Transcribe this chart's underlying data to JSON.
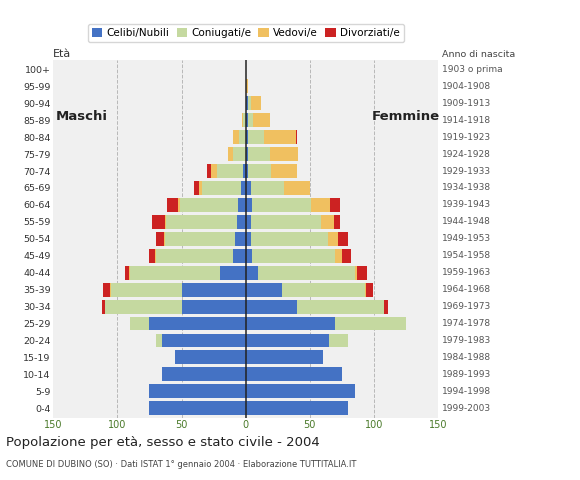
{
  "age_groups_bottom_to_top": [
    "0-4",
    "5-9",
    "10-14",
    "15-19",
    "20-24",
    "25-29",
    "30-34",
    "35-39",
    "40-44",
    "45-49",
    "50-54",
    "55-59",
    "60-64",
    "65-69",
    "70-74",
    "75-79",
    "80-84",
    "85-89",
    "90-94",
    "95-99",
    "100+"
  ],
  "birth_years_bottom_to_top": [
    "1999-2003",
    "1994-1998",
    "1989-1993",
    "1984-1988",
    "1979-1983",
    "1974-1978",
    "1969-1973",
    "1964-1968",
    "1959-1963",
    "1954-1958",
    "1949-1953",
    "1944-1948",
    "1939-1943",
    "1934-1938",
    "1929-1933",
    "1924-1928",
    "1919-1923",
    "1914-1918",
    "1909-1913",
    "1904-1908",
    "1903 o prima"
  ],
  "male_celibi": [
    75,
    75,
    65,
    55,
    65,
    75,
    50,
    50,
    20,
    10,
    8,
    7,
    6,
    4,
    2,
    0,
    0,
    0,
    0,
    0,
    0
  ],
  "male_coniugati": [
    0,
    0,
    0,
    0,
    5,
    15,
    60,
    55,
    70,
    60,
    55,
    55,
    45,
    30,
    20,
    10,
    5,
    2,
    0,
    0,
    0
  ],
  "male_vedovi": [
    0,
    0,
    0,
    0,
    0,
    0,
    0,
    1,
    1,
    1,
    1,
    1,
    2,
    2,
    5,
    4,
    5,
    1,
    0,
    0,
    0
  ],
  "male_divorziati": [
    0,
    0,
    0,
    0,
    0,
    0,
    2,
    5,
    3,
    4,
    6,
    10,
    8,
    4,
    3,
    0,
    0,
    0,
    0,
    0,
    0
  ],
  "female_nubili": [
    80,
    85,
    75,
    60,
    65,
    70,
    40,
    28,
    10,
    5,
    4,
    4,
    5,
    4,
    2,
    2,
    2,
    2,
    2,
    0,
    0
  ],
  "female_coniugate": [
    0,
    0,
    0,
    0,
    15,
    55,
    68,
    65,
    75,
    65,
    60,
    55,
    46,
    26,
    18,
    17,
    12,
    4,
    2,
    0,
    0
  ],
  "female_vedove": [
    0,
    0,
    0,
    0,
    0,
    0,
    0,
    1,
    2,
    5,
    8,
    10,
    15,
    20,
    20,
    22,
    25,
    13,
    8,
    2,
    0
  ],
  "female_divorziate": [
    0,
    0,
    0,
    0,
    0,
    0,
    3,
    5,
    8,
    7,
    8,
    5,
    8,
    0,
    0,
    0,
    1,
    0,
    0,
    0,
    0
  ],
  "colors": {
    "celibi": "#4472c4",
    "coniugati": "#c5d9a0",
    "vedovi": "#f0c060",
    "divorziati": "#cc2222"
  },
  "title": "Popolazione per età, sesso e stato civile - 2004",
  "subtitle": "COMUNE DI DUBINO (SO) · Dati ISTAT 1° gennaio 2004 · Elaborazione TUTTITALIA.IT",
  "eta_label": "Età",
  "anno_label": "Anno di nascita",
  "label_maschi": "Maschi",
  "label_femmine": "Femmine",
  "legend_labels": [
    "Celibi/Nubili",
    "Coniugati/e",
    "Vedovi/e",
    "Divorziati/e"
  ],
  "xlim": 150,
  "xtick_vals": [
    -150,
    -100,
    -50,
    0,
    50,
    100,
    150
  ],
  "bg_color": "#ffffff",
  "plot_bg": "#f0f0f0",
  "axis_tick_color": "#4a7a2a",
  "grid_color": "#aaaaaa"
}
